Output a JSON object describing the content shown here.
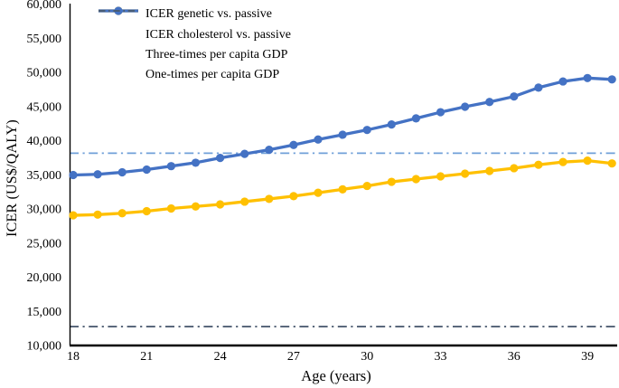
{
  "chart_data": {
    "type": "line",
    "title": "",
    "xlabel": "Age (years)",
    "ylabel": "ICER (US$/QALY)",
    "xlim": [
      18,
      40.3
    ],
    "ylim": [
      10000,
      60000
    ],
    "grid": false,
    "legend_position": "top-left-inside",
    "x_ticks": [
      18,
      21,
      24,
      27,
      30,
      33,
      36,
      39
    ],
    "y_ticks": [
      10000,
      15000,
      20000,
      25000,
      30000,
      35000,
      40000,
      45000,
      50000,
      55000,
      60000
    ],
    "x": [
      18,
      19,
      20,
      21,
      22,
      23,
      24,
      25,
      26,
      27,
      28,
      29,
      30,
      31,
      32,
      33,
      34,
      35,
      36,
      37,
      38,
      39,
      40
    ],
    "series": [
      {
        "name": "ICER genetic vs. passive",
        "color": "#FFC000",
        "marker": "circle",
        "style": "solid",
        "values": [
          29000,
          29100,
          29300,
          29600,
          30000,
          30300,
          30600,
          31000,
          31400,
          31800,
          32300,
          32800,
          33300,
          33900,
          34300,
          34700,
          35100,
          35500,
          35900,
          36400,
          36800,
          37000,
          36600
        ]
      },
      {
        "name": "ICER cholesterol vs. passive",
        "color": "#4472C4",
        "marker": "circle",
        "style": "solid",
        "values": [
          34900,
          35000,
          35300,
          35700,
          36200,
          36700,
          37400,
          38000,
          38600,
          39300,
          40100,
          40800,
          41500,
          42300,
          43200,
          44100,
          44900,
          45600,
          46400,
          47700,
          48600,
          49100,
          48900
        ]
      }
    ],
    "reference_lines": [
      {
        "name": "Three-times per capita GDP",
        "color": "#6F9FD8",
        "style": "dash-dot",
        "value": 38100
      },
      {
        "name": "One-times per capita GDP",
        "color": "#44546A",
        "style": "dash-dot",
        "value": 12700
      }
    ],
    "axis_color": "#000000"
  }
}
